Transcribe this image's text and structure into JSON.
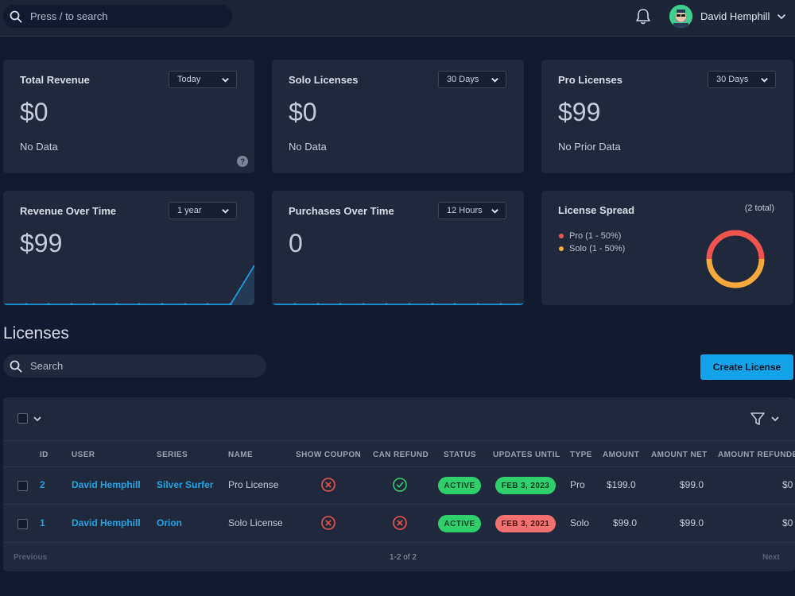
{
  "topbar": {
    "search_placeholder": "Press / to search",
    "user_name": "David Hemphill"
  },
  "cards": {
    "total_revenue": {
      "title": "Total Revenue",
      "range": "Today",
      "value": "$0",
      "sub": "No Data"
    },
    "solo_licenses": {
      "title": "Solo Licenses",
      "range": "30 Days",
      "value": "$0",
      "sub": "No Data"
    },
    "pro_licenses": {
      "title": "Pro Licenses",
      "range": "30 Days",
      "value": "$99",
      "sub": "No Prior Data"
    },
    "revenue_over_time": {
      "title": "Revenue Over Time",
      "range": "1 year",
      "value": "$99"
    },
    "purchases_over_time": {
      "title": "Purchases Over Time",
      "range": "12 Hours",
      "value": "0"
    },
    "license_spread": {
      "title": "License Spread",
      "total": "(2 total)",
      "legend": [
        {
          "label": "Pro (1 - 50%)",
          "color": "#f0544f"
        },
        {
          "label": "Solo (1 - 50%)",
          "color": "#f5a93b"
        }
      ]
    }
  },
  "licenses": {
    "title": "Licenses",
    "search_placeholder": "Search",
    "create_label": "Create License",
    "columns": [
      "ID",
      "USER",
      "SERIES",
      "NAME",
      "SHOW COUPON",
      "CAN REFUND",
      "STATUS",
      "UPDATES UNTIL",
      "TYPE",
      "AMOUNT",
      "AMOUNT NET",
      "AMOUNT REFUNDED"
    ],
    "rows": [
      {
        "id": "2",
        "user": "David Hemphill",
        "series": "Silver Surfer",
        "name": "Pro License",
        "show_coupon": "no",
        "can_refund": "yes",
        "status": "ACTIVE",
        "updates_until": "FEB 3, 2023",
        "type": "Pro",
        "amount": "$199.0",
        "amount_net": "$99.0",
        "amount_refunded": "$0"
      },
      {
        "id": "1",
        "user": "David Hemphill",
        "series": "Orion",
        "name": "Solo License",
        "show_coupon": "no",
        "can_refund": "no",
        "status": "ACTIVE",
        "updates_until": "FEB 3, 2021",
        "type": "Solo",
        "amount": "$99.0",
        "amount_net": "$99.0",
        "amount_refunded": "$0"
      }
    ],
    "pagination": {
      "prev": "Previous",
      "summary": "1-2 of 2",
      "next": "Next"
    }
  },
  "colors": {
    "accent": "#14a3e8",
    "active_green": "#2fcf6c",
    "expired_red": "#f2706e",
    "update_green": "#2fcf6c"
  }
}
